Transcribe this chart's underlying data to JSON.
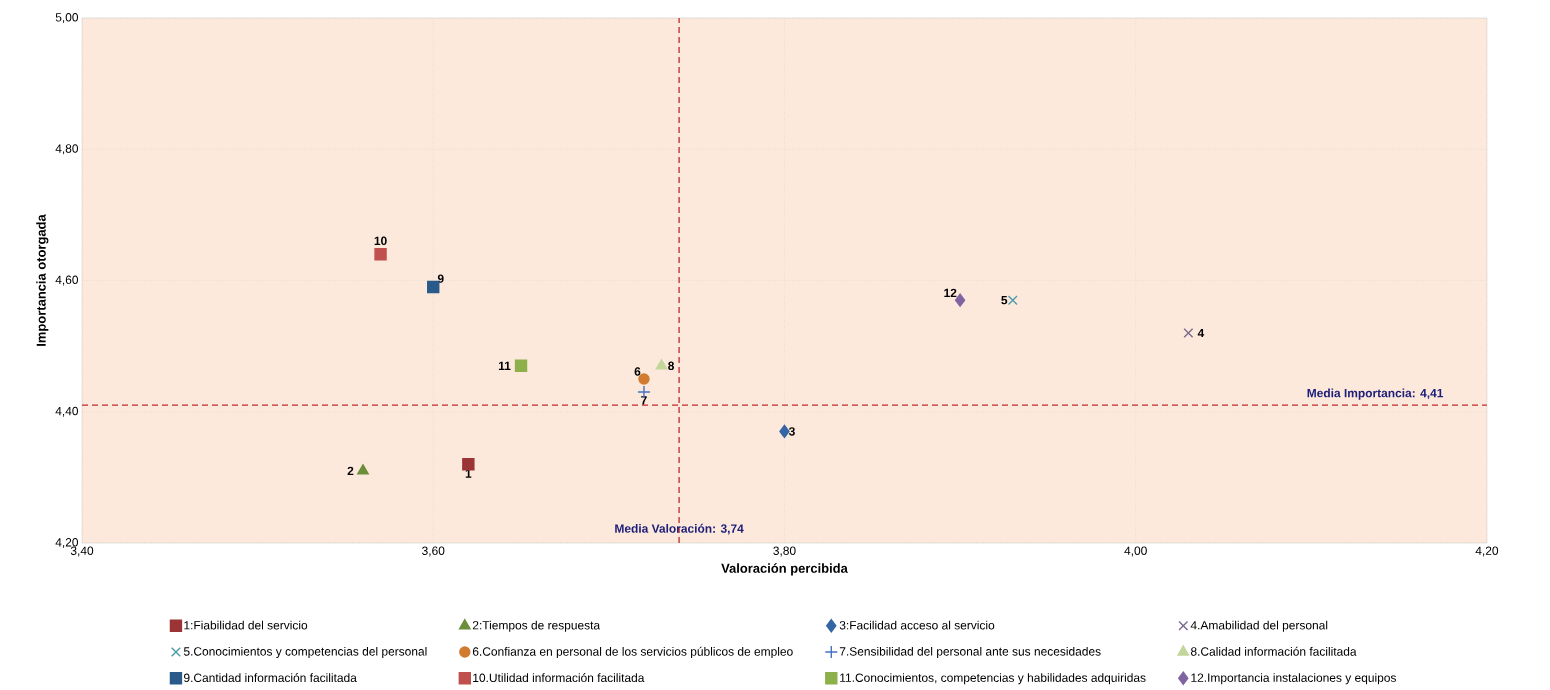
{
  "chart_data": {
    "type": "scatter",
    "xlabel": "Valoración percibida",
    "ylabel": "Importancia otorgada",
    "xlim": [
      3.4,
      4.2
    ],
    "ylim": [
      4.2,
      5.0
    ],
    "xticks": [
      {
        "value": 3.4,
        "label": "3,40"
      },
      {
        "value": 3.6,
        "label": "3,60"
      },
      {
        "value": 3.8,
        "label": "3,80"
      },
      {
        "value": 4.0,
        "label": "4,00"
      },
      {
        "value": 4.2,
        "label": "4,20"
      }
    ],
    "yticks": [
      {
        "value": 4.2,
        "label": "4,20"
      },
      {
        "value": 4.4,
        "label": "4,40"
      },
      {
        "value": 4.6,
        "label": "4,60"
      },
      {
        "value": 4.8,
        "label": "4,80"
      },
      {
        "value": 5.0,
        "label": "5,00"
      }
    ],
    "grid": true,
    "legend": "bottom",
    "series": [
      {
        "name": "1:Fiabilidad del servicio",
        "color": "#9b3434",
        "marker": "square",
        "x": [
          3.62
        ],
        "values": [
          4.32
        ]
      },
      {
        "name": "2:Tiempos de respuesta",
        "color": "#6b8e3a",
        "marker": "triangle",
        "x": [
          3.56
        ],
        "values": [
          4.31
        ]
      },
      {
        "name": "3:Facilidad acceso al servicio",
        "color": "#3465a4",
        "marker": "diamond",
        "x": [
          3.8
        ],
        "values": [
          4.37
        ]
      },
      {
        "name": "4.Amabilidad del personal",
        "color": "#7b6a8e",
        "marker": "cross",
        "x": [
          4.03
        ],
        "values": [
          4.52
        ]
      },
      {
        "name": "5.Conocimientos y competencias del personal",
        "color": "#4a9aa8",
        "marker": "cross",
        "x": [
          3.93
        ],
        "values": [
          4.57
        ]
      },
      {
        "name": "6.Confianza en personal de los servicios públicos de empleo",
        "color": "#d07b30",
        "marker": "circle",
        "x": [
          3.72
        ],
        "values": [
          4.45
        ]
      },
      {
        "name": "7.Sensibilidad del personal ante sus necesidades",
        "color": "#4472c4",
        "marker": "plus",
        "x": [
          3.72
        ],
        "values": [
          4.43
        ]
      },
      {
        "name": "8.Calidad información facilitada",
        "color": "#c3d69b",
        "marker": "triangle",
        "x": [
          3.73
        ],
        "values": [
          4.47
        ]
      },
      {
        "name": "9.Cantidad información facilitada",
        "color": "#2a5a8a",
        "marker": "square",
        "x": [
          3.6
        ],
        "values": [
          4.59
        ]
      },
      {
        "name": "10.Utilidad información facilitada",
        "color": "#c0504d",
        "marker": "square",
        "x": [
          3.57
        ],
        "values": [
          4.64
        ]
      },
      {
        "name": "11.Conocimientos, competencias y habilidades adquiridas",
        "color": "#8db04a",
        "marker": "square",
        "x": [
          3.65
        ],
        "values": [
          4.47
        ]
      },
      {
        "name": "12.Importancia instalaciones y equipos",
        "color": "#8064a2",
        "marker": "diamond",
        "x": [
          3.9
        ],
        "values": [
          4.57
        ]
      }
    ],
    "ref_lines": [
      {
        "axis": "x",
        "value": 3.74,
        "label": "Media Valoración: 3,74",
        "color": "#c0282d",
        "line_style": "dashed"
      },
      {
        "axis": "y",
        "value": 4.41,
        "label": "Media Importancia: 4,41",
        "color": "#c0282d",
        "line_style": "dashed"
      }
    ],
    "annotations": [
      {
        "text": "1",
        "x": 3.62,
        "y": 4.32
      },
      {
        "text": "2",
        "x": 3.56,
        "y": 4.31
      },
      {
        "text": "3",
        "x": 3.8,
        "y": 4.37
      },
      {
        "text": "4",
        "x": 4.03,
        "y": 4.52
      },
      {
        "text": "5",
        "x": 3.93,
        "y": 4.57
      },
      {
        "text": "6",
        "x": 3.72,
        "y": 4.45
      },
      {
        "text": "7",
        "x": 3.72,
        "y": 4.43
      },
      {
        "text": "8",
        "x": 3.73,
        "y": 4.47
      },
      {
        "text": "9",
        "x": 3.6,
        "y": 4.59
      },
      {
        "text": "10",
        "x": 3.57,
        "y": 4.64
      },
      {
        "text": "11",
        "x": 3.65,
        "y": 4.47
      },
      {
        "text": "12",
        "x": 3.9,
        "y": 4.57
      }
    ]
  }
}
